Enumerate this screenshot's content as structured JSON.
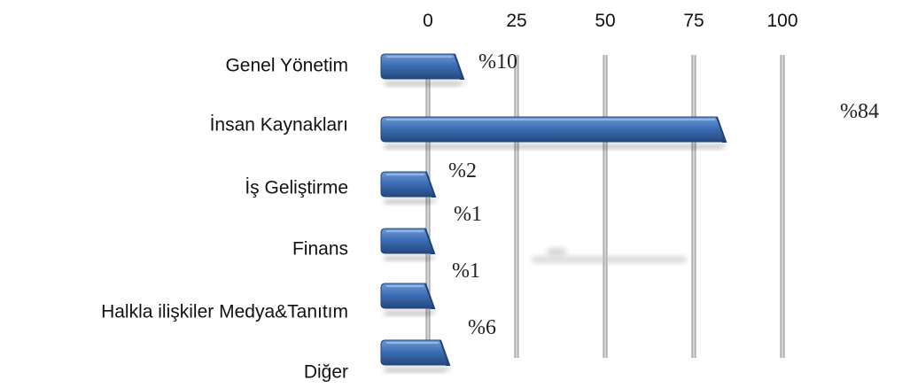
{
  "chart_data": {
    "type": "bar",
    "orientation": "horizontal",
    "title": "",
    "xlabel": "",
    "ylabel": "",
    "xlim": [
      0,
      100
    ],
    "x_ticks": [
      "0",
      "25",
      "50",
      "75",
      "100"
    ],
    "grid": true,
    "legend": "none",
    "categories": [
      "Genel Yönetim",
      "İnsan Kaynakları",
      "İş Geliştirme",
      "Finans",
      "Halkla ilişkiler Medya&Tanıtım",
      "Diğer"
    ],
    "values": [
      10,
      84,
      2,
      1,
      1,
      6
    ],
    "value_labels": [
      "%10",
      "%84",
      "%2",
      "%1",
      "%1",
      "%6"
    ],
    "colors": {
      "bar": "#3b6db3",
      "bar_dark": "#1f4378",
      "bar_light": "#6c97d3",
      "grid": "#b9b9b9"
    }
  }
}
